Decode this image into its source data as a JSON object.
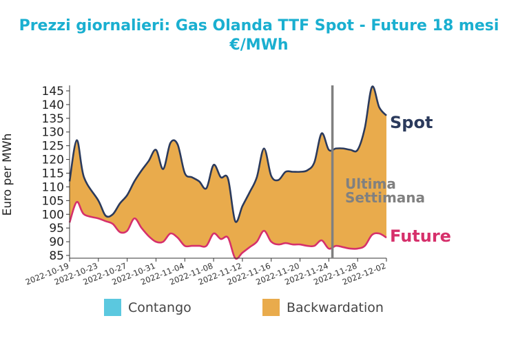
{
  "chart_data": {
    "type": "area",
    "title_line1": "Prezzi giornalieri: Gas Olanda TTF Spot - Future 18 mesi",
    "title_line2": "€/MWh",
    "ylabel": "Euro per MWh",
    "ylim": [
      84,
      147
    ],
    "yticks": [
      85,
      90,
      95,
      100,
      105,
      110,
      115,
      120,
      125,
      130,
      135,
      140,
      145
    ],
    "xlim": [
      "2022-10-19",
      "2022-12-02"
    ],
    "xticks": [
      "2022-10-19",
      "2022-10-23",
      "2022-10-27",
      "2022-10-31",
      "2022-11-04",
      "2022-11-08",
      "2022-11-12",
      "2022-11-16",
      "2022-11-20",
      "2022-11-24",
      "2022-11-28",
      "2022-12-02"
    ],
    "series": [
      {
        "name": "Spot",
        "color": "#2b3a5c",
        "points": [
          [
            "2022-10-19",
            112
          ],
          [
            "2022-10-20",
            127
          ],
          [
            "2022-10-21",
            113.5
          ],
          [
            "2022-10-23",
            105
          ],
          [
            "2022-10-24",
            99.5
          ],
          [
            "2022-10-25",
            100
          ],
          [
            "2022-10-26",
            104
          ],
          [
            "2022-10-27",
            107
          ],
          [
            "2022-10-28",
            112
          ],
          [
            "2022-10-29",
            116
          ],
          [
            "2022-10-30",
            119.5
          ],
          [
            "2022-10-31",
            123.5
          ],
          [
            "2022-11-01",
            116.5
          ],
          [
            "2022-11-02",
            126
          ],
          [
            "2022-11-03",
            125.5
          ],
          [
            "2022-11-04",
            115
          ],
          [
            "2022-11-05",
            113.5
          ],
          [
            "2022-11-06",
            112
          ],
          [
            "2022-11-07",
            109.5
          ],
          [
            "2022-11-08",
            118
          ],
          [
            "2022-11-09",
            113.5
          ],
          [
            "2022-11-10",
            113
          ],
          [
            "2022-11-11",
            97.5
          ],
          [
            "2022-11-12",
            103
          ],
          [
            "2022-11-13",
            108
          ],
          [
            "2022-11-14",
            113.5
          ],
          [
            "2022-11-15",
            124
          ],
          [
            "2022-11-16",
            114
          ],
          [
            "2022-11-17",
            112.5
          ],
          [
            "2022-11-18",
            115.5
          ],
          [
            "2022-11-19",
            115.5
          ],
          [
            "2022-11-20",
            115.5
          ],
          [
            "2022-11-21",
            116
          ],
          [
            "2022-11-22",
            119
          ],
          [
            "2022-11-23",
            129.5
          ],
          [
            "2022-11-24",
            123.5
          ],
          [
            "2022-11-25",
            124
          ],
          [
            "2022-11-26",
            124
          ],
          [
            "2022-11-27",
            123.5
          ],
          [
            "2022-11-28",
            123.5
          ],
          [
            "2022-11-29",
            131.5
          ],
          [
            "2022-11-30",
            146.5
          ],
          [
            "2022-12-01",
            139
          ],
          [
            "2022-12-02",
            136
          ]
        ]
      },
      {
        "name": "Future",
        "color": "#d6306b",
        "points": [
          [
            "2022-10-19",
            97
          ],
          [
            "2022-10-20",
            104.5
          ],
          [
            "2022-10-21",
            100
          ],
          [
            "2022-10-23",
            98.5
          ],
          [
            "2022-10-24",
            97.5
          ],
          [
            "2022-10-25",
            96.5
          ],
          [
            "2022-10-26",
            93.5
          ],
          [
            "2022-10-27",
            94
          ],
          [
            "2022-10-28",
            98.5
          ],
          [
            "2022-10-29",
            95
          ],
          [
            "2022-10-30",
            92
          ],
          [
            "2022-10-31",
            90
          ],
          [
            "2022-11-01",
            90
          ],
          [
            "2022-11-02",
            93
          ],
          [
            "2022-11-03",
            91.5
          ],
          [
            "2022-11-04",
            88.5
          ],
          [
            "2022-11-05",
            88.5
          ],
          [
            "2022-11-06",
            88.5
          ],
          [
            "2022-11-07",
            88.5
          ],
          [
            "2022-11-08",
            93
          ],
          [
            "2022-11-09",
            91
          ],
          [
            "2022-11-10",
            91.5
          ],
          [
            "2022-11-11",
            84
          ],
          [
            "2022-11-12",
            86
          ],
          [
            "2022-11-13",
            88
          ],
          [
            "2022-11-14",
            90
          ],
          [
            "2022-11-15",
            94
          ],
          [
            "2022-11-16",
            90
          ],
          [
            "2022-11-17",
            89
          ],
          [
            "2022-11-18",
            89.5
          ],
          [
            "2022-11-19",
            89
          ],
          [
            "2022-11-20",
            89
          ],
          [
            "2022-11-21",
            88.5
          ],
          [
            "2022-11-22",
            88.5
          ],
          [
            "2022-11-23",
            90.5
          ],
          [
            "2022-11-24",
            87.5
          ],
          [
            "2022-11-25",
            88.5
          ],
          [
            "2022-11-26",
            88
          ],
          [
            "2022-11-27",
            87.5
          ],
          [
            "2022-11-28",
            87.5
          ],
          [
            "2022-11-29",
            88.5
          ],
          [
            "2022-11-30",
            92.5
          ],
          [
            "2022-12-01",
            93
          ],
          [
            "2022-12-02",
            91.5
          ]
        ]
      }
    ],
    "fill": {
      "contango_color": "#5bc8df",
      "backwardation_color": "#e9ab4c"
    },
    "last_week": {
      "date": "2022-11-25",
      "label_line1": "Ultima",
      "label_line2": "Settimana",
      "color": "#808080"
    },
    "legend": {
      "placement": "bottom",
      "items": [
        {
          "label": "Contango",
          "color": "#5bc8df"
        },
        {
          "label": "Backwardation",
          "color": "#e9ab4c"
        }
      ]
    },
    "grid": false
  }
}
